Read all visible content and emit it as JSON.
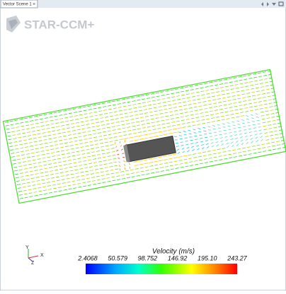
{
  "tab": {
    "title": "Vector Scene 1",
    "close": "×"
  },
  "logo": "STAR-CCM+",
  "triad": {
    "y": "Y",
    "z": "Z",
    "x": "X"
  },
  "colorbar": {
    "title": "Velocity (m/s)",
    "labels": [
      "2.4068",
      "50.579",
      "98.752",
      "146.92",
      "195.10",
      "243.27"
    ]
  }
}
